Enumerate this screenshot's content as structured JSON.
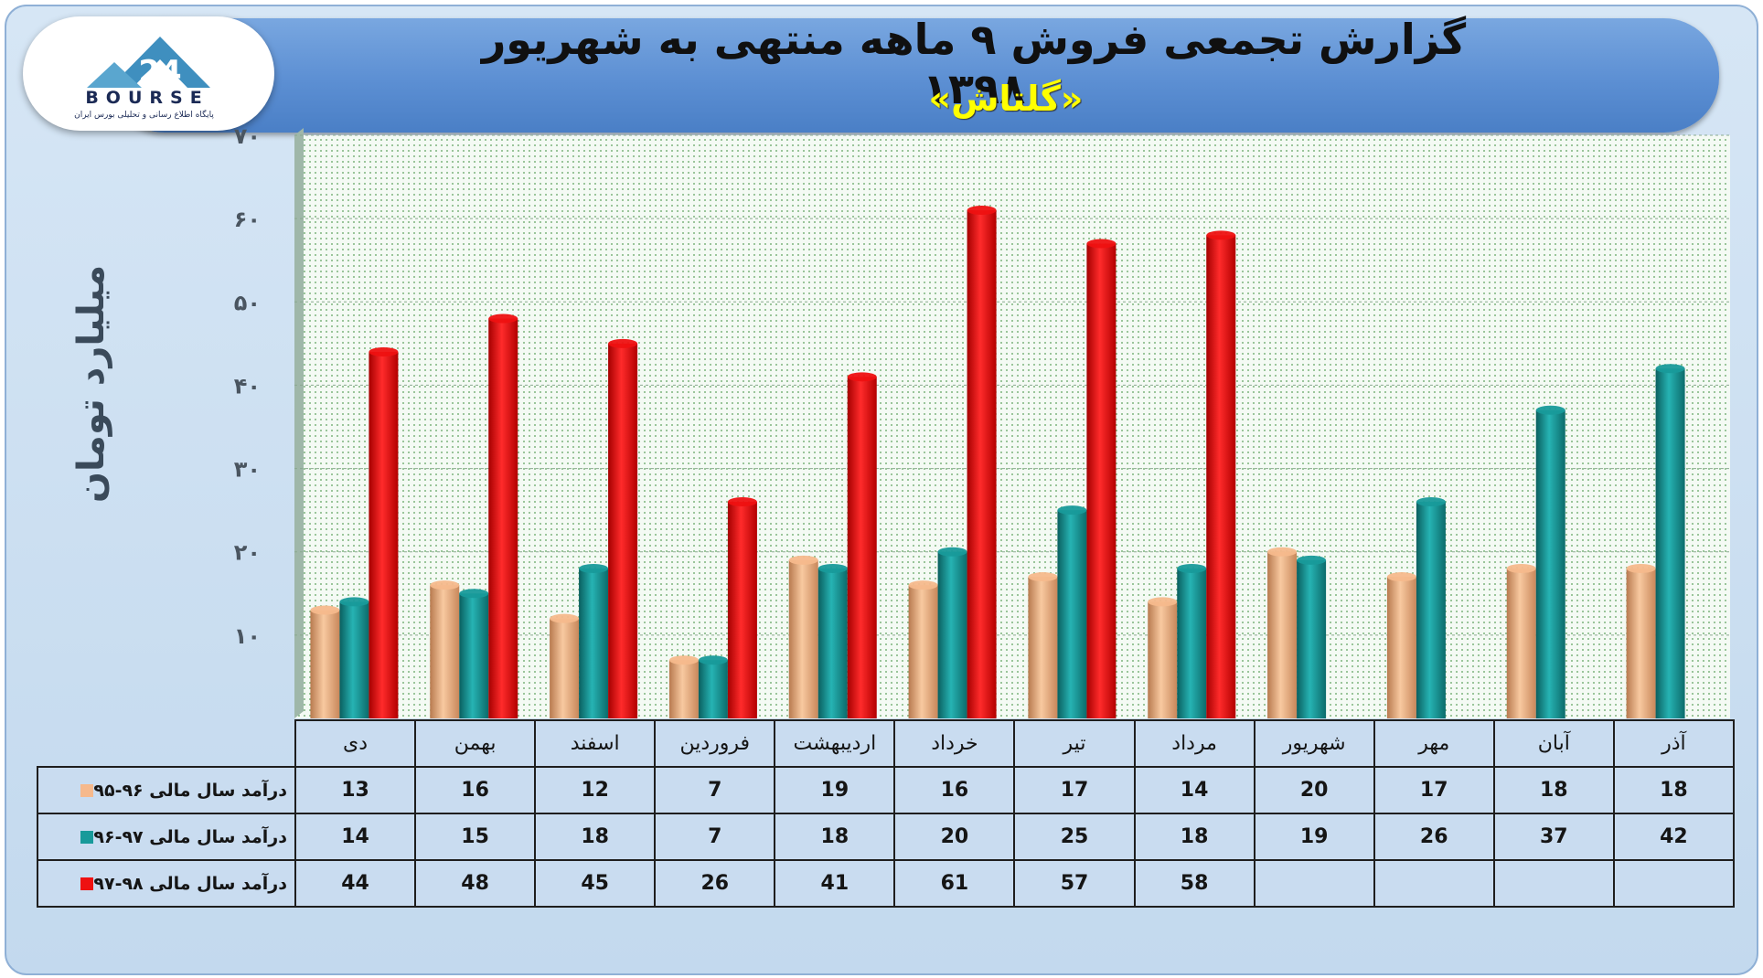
{
  "title": "گزارش تجمعی فروش ۹ ماهه منتهی به شهریور ۱۳۹۸",
  "subtitle": "«گلتاش»",
  "logo": {
    "word": "BOURSE",
    "tagline": "پایگاه اطلاع رسانی و تحلیلی بورس ایران"
  },
  "colors": {
    "series_1": "#f6b98c",
    "series_2": "#189a9a",
    "series_3": "#ee1111"
  },
  "chart_data": {
    "type": "bar",
    "ylabel": "میلیارد تومان",
    "ylim": [
      0,
      70
    ],
    "yticks": [
      "۱۰",
      "۲۰",
      "۳۰",
      "۴۰",
      "۵۰",
      "۶۰",
      "۷۰"
    ],
    "grid": true,
    "categories": [
      "دی",
      "بهمن",
      "اسفند",
      "فروردین",
      "اردیبهشت",
      "خرداد",
      "تیر",
      "مرداد",
      "شهریور",
      "مهر",
      "آبان",
      "آذر"
    ],
    "series": [
      {
        "name": "درآمد سال مالی ۹۶-۹۵",
        "values": [
          13,
          16,
          12,
          7,
          19,
          16,
          17,
          14,
          20,
          17,
          18,
          18
        ]
      },
      {
        "name": "درآمد سال مالی ۹۷-۹۶",
        "values": [
          14,
          15,
          18,
          7,
          18,
          20,
          25,
          18,
          19,
          26,
          37,
          42
        ]
      },
      {
        "name": "درآمد سال مالی ۹۸-۹۷",
        "values": [
          44,
          48,
          45,
          26,
          41,
          61,
          57,
          58,
          null,
          null,
          null,
          null
        ]
      }
    ]
  }
}
